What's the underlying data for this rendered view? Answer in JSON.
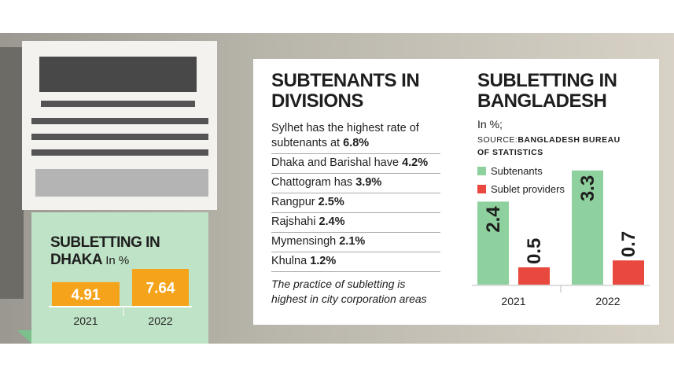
{
  "chart_data": [
    {
      "type": "bar",
      "title": "SUBLETTING IN DHAKA",
      "unit": "In %",
      "categories": [
        "2021",
        "2022"
      ],
      "values": [
        4.91,
        7.64
      ],
      "color": "#f5a31a"
    },
    {
      "type": "grouped-bar",
      "title": "SUBLETTING IN BANGLADESH",
      "unit": "In %;",
      "source_label": "SOURCE:",
      "source": "BANGLADESH BUREAU OF STATISTICS",
      "categories": [
        "2021",
        "2022"
      ],
      "series": [
        {
          "name": "Subtenants",
          "color": "#8fd19e",
          "values": [
            2.4,
            3.3
          ]
        },
        {
          "name": "Sublet providers",
          "color": "#e8483d",
          "values": [
            0.5,
            0.7
          ]
        }
      ]
    }
  ],
  "divisions": {
    "title": "SUBTENANTS IN DIVISIONS",
    "items": [
      {
        "text": "Sylhet has the highest rate of subtenants at",
        "value": "6.8%"
      },
      {
        "text": "Dhaka and Barishal have",
        "value": "4.2%"
      },
      {
        "text": "Chattogram has",
        "value": "3.9%"
      },
      {
        "text": "Rangpur",
        "value": "2.5%"
      },
      {
        "text": "Rajshahi",
        "value": "2.4%"
      },
      {
        "text": "Mymensingh",
        "value": "2.1%"
      },
      {
        "text": "Khulna",
        "value": "1.2%"
      }
    ],
    "note": "The practice of subletting is highest in city corporation areas"
  }
}
